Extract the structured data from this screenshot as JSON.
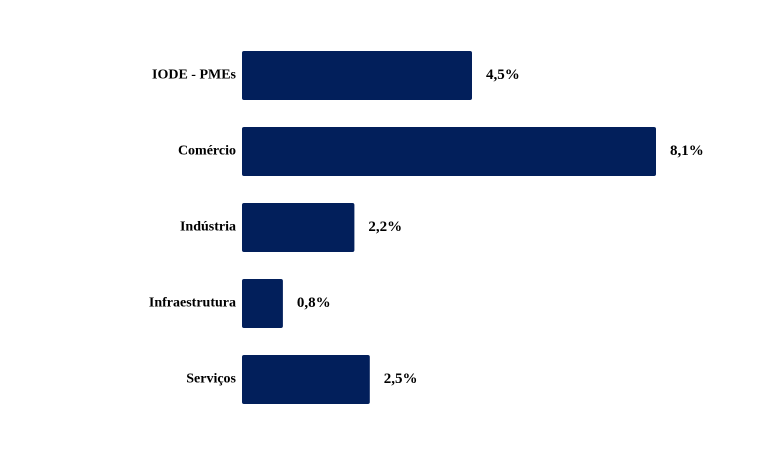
{
  "chart_data": {
    "type": "bar",
    "orientation": "horizontal",
    "categories": [
      "IODE - PMEs",
      "Comércio",
      "Indústria",
      "Infraestrutura",
      "Serviços"
    ],
    "values": [
      4.5,
      8.1,
      2.2,
      0.8,
      2.5
    ],
    "value_labels": [
      "4,5%",
      "8,1%",
      "2,2%",
      "0,8%",
      "2,5%"
    ],
    "title": "",
    "xlabel": "",
    "ylabel": "",
    "xlim": [
      0,
      8.1
    ],
    "grid": false,
    "legend": "none",
    "bar_color": "#021F5B"
  }
}
